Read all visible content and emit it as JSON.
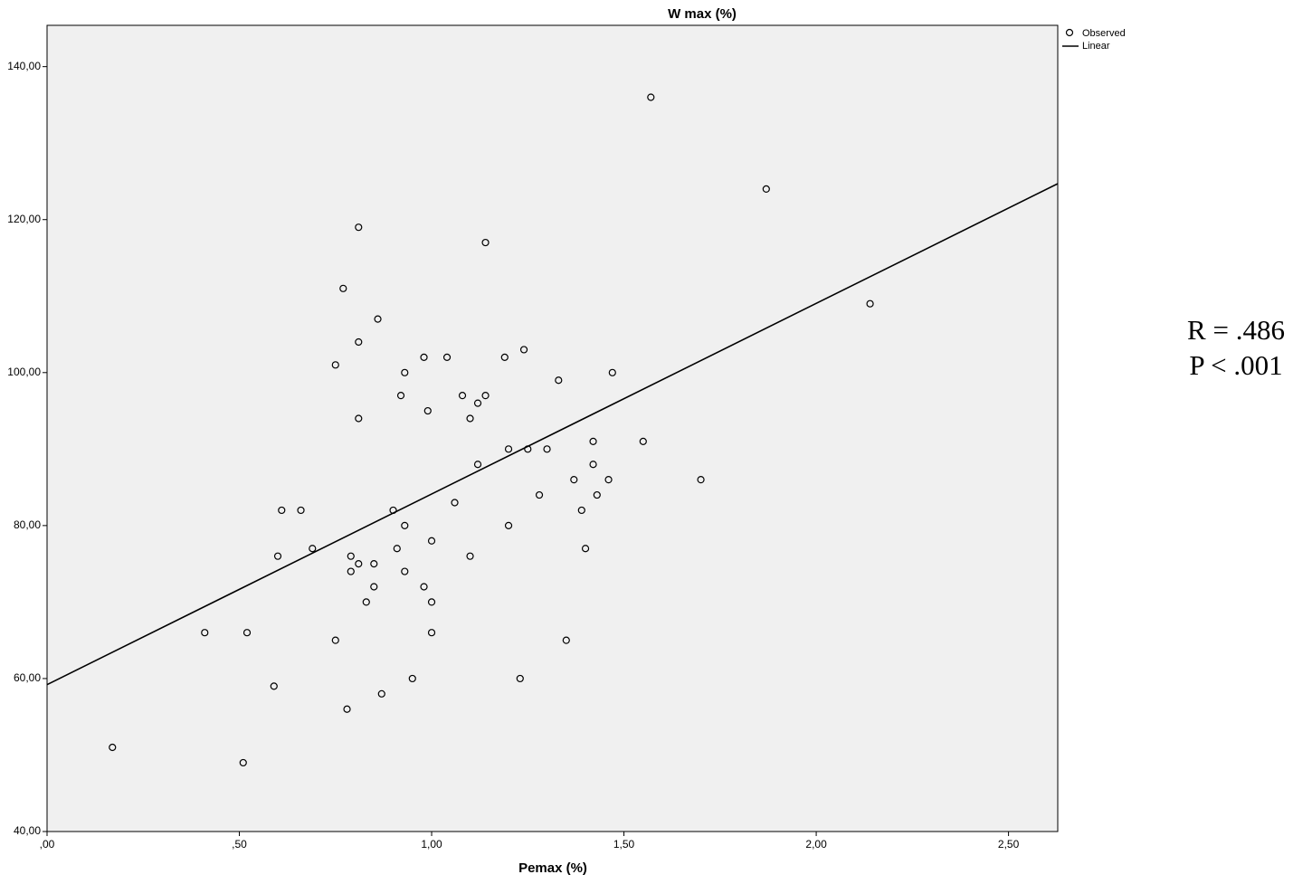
{
  "chart_data": {
    "type": "scatter",
    "title": "W max (%)",
    "x_label": "Pemax (%)",
    "annotations": [
      "R = .486",
      "P < .001"
    ],
    "xlim": [
      0,
      2.628
    ],
    "ylim": [
      40,
      145.4
    ],
    "xticks": [
      {
        "value": 0,
        "label": ",00"
      },
      {
        "value": 0.5,
        "label": ",50"
      },
      {
        "value": 1,
        "label": "1,00"
      },
      {
        "value": 1.5,
        "label": "1,50"
      },
      {
        "value": 2,
        "label": "2,00"
      },
      {
        "value": 2.5,
        "label": "2,50"
      }
    ],
    "yticks": [
      {
        "value": 40,
        "label": "40,00"
      },
      {
        "value": 60,
        "label": "60,00"
      },
      {
        "value": 80,
        "label": "80,00"
      },
      {
        "value": 100,
        "label": "100,00"
      },
      {
        "value": 120,
        "label": "120,00"
      },
      {
        "value": 140,
        "label": "140,00"
      }
    ],
    "background": "#f0f0f0",
    "legend": "top-right",
    "series": [
      {
        "name": "Observed",
        "type": "scatter",
        "color": "#000000",
        "x": [
          0.17,
          0.41,
          0.52,
          0.51,
          0.59,
          0.6,
          0.61,
          0.66,
          0.69,
          0.75,
          0.75,
          0.77,
          0.78,
          0.79,
          0.79,
          0.81,
          0.81,
          0.81,
          0.81,
          0.83,
          0.85,
          0.85,
          0.86,
          0.87,
          0.9,
          0.91,
          0.92,
          0.93,
          0.93,
          0.93,
          0.95,
          0.98,
          0.98,
          0.99,
          1.0,
          1.0,
          1.0,
          1.04,
          1.06,
          1.08,
          1.1,
          1.1,
          1.12,
          1.12,
          1.14,
          1.14,
          1.19,
          1.2,
          1.2,
          1.23,
          1.24,
          1.25,
          1.28,
          1.3,
          1.33,
          1.35,
          1.37,
          1.39,
          1.4,
          1.42,
          1.42,
          1.43,
          1.46,
          1.47,
          1.55,
          1.57,
          1.7,
          1.87,
          2.14
        ],
        "values": [
          51,
          66,
          66,
          49,
          59,
          76,
          82,
          82,
          77,
          65,
          101,
          111,
          56,
          76,
          74,
          75,
          94,
          104,
          119,
          70,
          75,
          72,
          107,
          58,
          82,
          77,
          97,
          100,
          80,
          74,
          60,
          102,
          72,
          95,
          78,
          70,
          66,
          102,
          83,
          97,
          94,
          76,
          96,
          88,
          117,
          97,
          102,
          90,
          80,
          60,
          103,
          90,
          84,
          90,
          99,
          65,
          86,
          82,
          77,
          91,
          88,
          84,
          86,
          100,
          91,
          136,
          86,
          124,
          109
        ]
      },
      {
        "name": "Linear",
        "type": "line",
        "color": "#000000",
        "x": [
          0,
          2.628
        ],
        "values": [
          59.2,
          124.7
        ]
      }
    ]
  }
}
